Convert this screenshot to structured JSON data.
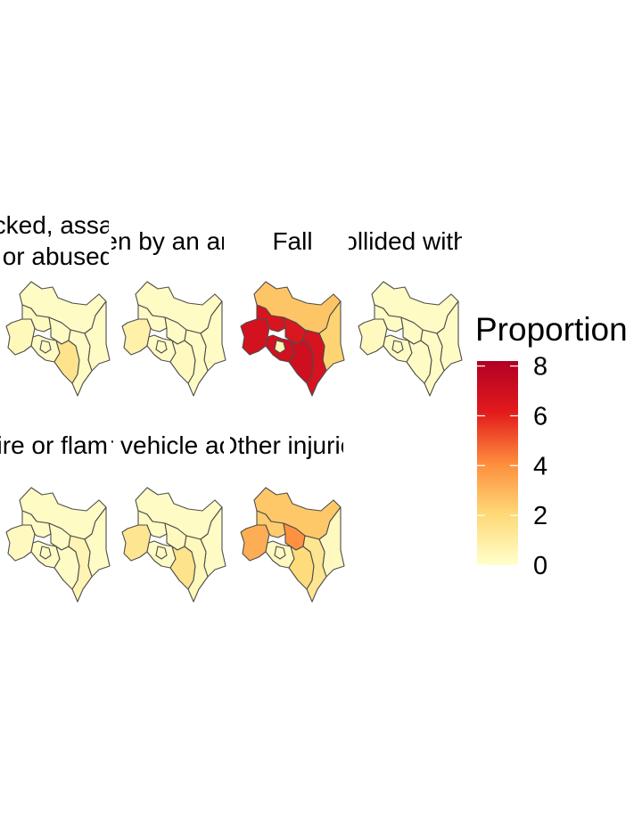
{
  "panels": [
    {
      "title_lines": [
        "Attacked, assaulted",
        "or abused"
      ],
      "regions": {
        "north": 0.2,
        "northeast": 0.2,
        "west": 0.4,
        "centralwest": 0.3,
        "central": 0.2,
        "southwest": 0.2,
        "southeast": 1.5,
        "coast": 0.2,
        "nairobi": 0.2
      }
    },
    {
      "title_lines": [
        "Bitten by an animal"
      ],
      "regions": {
        "north": 0.2,
        "northeast": 0.2,
        "west": 0.8,
        "centralwest": 0.2,
        "central": 0.2,
        "southwest": 0.2,
        "southeast": 0.3,
        "coast": 0.2,
        "nairobi": 0.2
      }
    },
    {
      "title_lines": [
        "Fall"
      ],
      "regions": {
        "north": 2.6,
        "northeast": 2.2,
        "west": 6.8,
        "centralwest": 6.6,
        "central": 6.5,
        "southwest": 6.9,
        "southeast": 7.0,
        "coast": 6.7,
        "nairobi": 0.5
      }
    },
    {
      "title_lines": [
        "Hit by or collided with something"
      ],
      "regions": {
        "north": 0.2,
        "northeast": 0.2,
        "west": 0.3,
        "centralwest": 0.2,
        "central": 0.2,
        "southwest": 0.2,
        "southeast": 0.2,
        "coast": 0.2,
        "nairobi": 0.2
      }
    },
    {
      "title_lines": [
        "Fire or flames"
      ],
      "regions": {
        "north": 0.2,
        "northeast": 0.2,
        "west": 0.3,
        "centralwest": 0.2,
        "central": 0.2,
        "southwest": 0.2,
        "southeast": 0.2,
        "coast": 0.6,
        "nairobi": 0.2
      }
    },
    {
      "title_lines": [
        "Motor vehicle accident"
      ],
      "regions": {
        "north": 0.2,
        "northeast": 0.2,
        "west": 1.4,
        "centralwest": 0.2,
        "central": 0.3,
        "southwest": 0.2,
        "southeast": 1.5,
        "coast": 0.4,
        "nairobi": 0.2
      }
    },
    {
      "title_lines": [
        "Other injuries"
      ],
      "regions": {
        "north": 2.5,
        "northeast": 0.3,
        "west": 3.2,
        "centralwest": 2.4,
        "central": 4.0,
        "southwest": 0.3,
        "southeast": 1.9,
        "coast": 1.4,
        "nairobi": 0.2
      }
    }
  ],
  "legend": {
    "title": "Proportion",
    "ticks": [
      "0",
      "2",
      "4",
      "6",
      "8"
    ],
    "min": 0,
    "max": 8.2,
    "colors": [
      "#FFFFCC",
      "#FED976",
      "#FD8D3C",
      "#E31A1C",
      "#B10026"
    ]
  }
}
